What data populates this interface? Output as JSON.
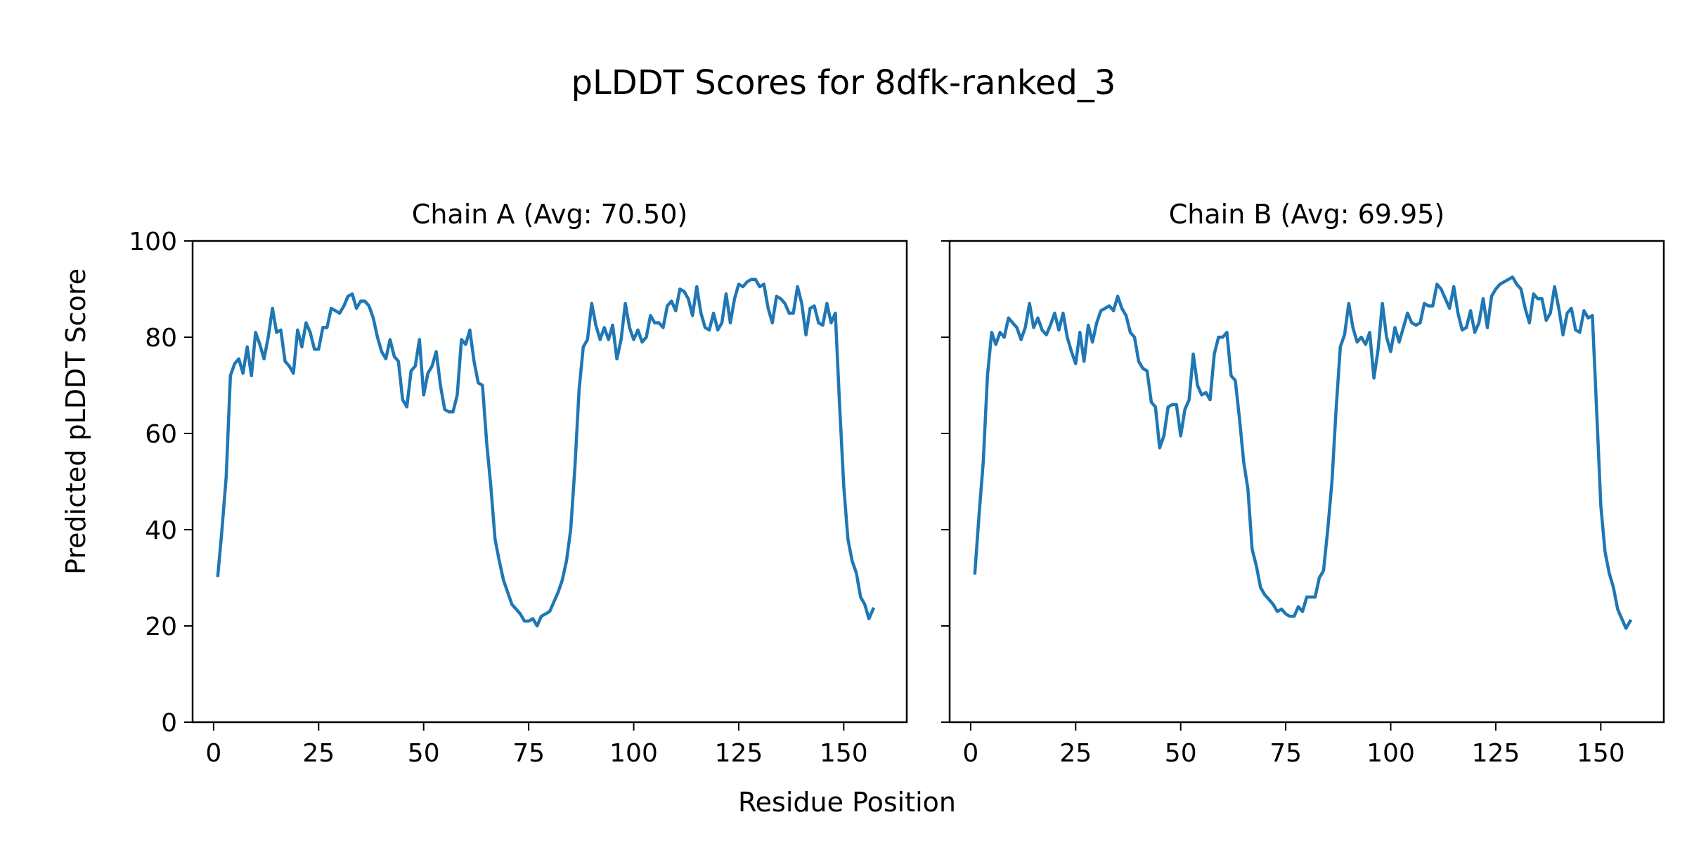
{
  "figure": {
    "title": "pLDDT Scores for 8dfk-ranked_3",
    "xlabel": "Residue Position",
    "ylabel": "Predicted pLDDT Score"
  },
  "colors": {
    "line": "#1f77b4",
    "axes": "#000000"
  },
  "chart_data": [
    {
      "type": "line",
      "title": "Chain A (Avg: 70.50)",
      "xlim": [
        -5,
        165
      ],
      "ylim": [
        0,
        100
      ],
      "xticks": [
        0,
        25,
        50,
        75,
        100,
        125,
        150
      ],
      "yticks": [
        0,
        20,
        40,
        60,
        80,
        100
      ],
      "series": [
        {
          "x": [
            1,
            2,
            3,
            4,
            5,
            6,
            7,
            8,
            9,
            10,
            11,
            12,
            13,
            14,
            15,
            16,
            17,
            18,
            19,
            20,
            21,
            22,
            23,
            24,
            25,
            26,
            27,
            28,
            29,
            30,
            31,
            32,
            33,
            34,
            35,
            36,
            37,
            38,
            39,
            40,
            41,
            42,
            43,
            44,
            45,
            46,
            47,
            48,
            49,
            50,
            51,
            52,
            53,
            54,
            55,
            56,
            57,
            58,
            59,
            60,
            61,
            62,
            63,
            64,
            65,
            66,
            67,
            68,
            69,
            70,
            71,
            72,
            73,
            74,
            75,
            76,
            77,
            78,
            79,
            80,
            81,
            82,
            83,
            84,
            85,
            86,
            87,
            88,
            89,
            90,
            91,
            92,
            93,
            94,
            95,
            96,
            97,
            98,
            99,
            100,
            101,
            102,
            103,
            104,
            105,
            106,
            107,
            108,
            109,
            110,
            111,
            112,
            113,
            114,
            115,
            116,
            117,
            118,
            119,
            120,
            121,
            122,
            123,
            124,
            125,
            126,
            127,
            128,
            129,
            130,
            131,
            132,
            133,
            134,
            135,
            136,
            137,
            138,
            139,
            140,
            141,
            142,
            143,
            144,
            145,
            146,
            147,
            148,
            149,
            150,
            151,
            152,
            153,
            154,
            155,
            156,
            157
          ],
          "y": [
            30.5,
            40,
            51,
            72,
            74.5,
            75.5,
            72.5,
            78,
            72,
            81,
            78.5,
            75.5,
            80,
            86,
            81,
            81.5,
            75,
            74,
            72.5,
            81.5,
            78,
            83,
            81,
            77.5,
            77.5,
            82,
            82,
            86,
            85.5,
            85,
            86.5,
            88.5,
            89,
            86,
            87.5,
            87.5,
            86.5,
            84,
            80,
            77,
            75.5,
            79.5,
            76,
            75,
            67,
            65.5,
            73,
            74,
            79.5,
            68,
            72.5,
            74,
            77,
            70,
            65,
            64.5,
            64.5,
            68,
            79.5,
            78.5,
            81.5,
            75,
            70.5,
            70,
            58,
            49,
            38,
            33.5,
            29.5,
            27,
            24.5,
            23.5,
            22.5,
            21,
            21,
            21.5,
            20,
            22,
            22.5,
            23,
            25,
            27,
            29.5,
            33.5,
            40,
            53,
            69,
            78,
            79.5,
            87,
            82.5,
            79.5,
            82,
            79.5,
            82.5,
            75.5,
            79.5,
            87,
            82,
            79.5,
            81.5,
            79,
            80,
            84.5,
            83,
            83,
            82,
            86.5,
            87.5,
            85.5,
            90,
            89.5,
            88,
            84.5,
            90.5,
            85,
            82,
            81.5,
            85,
            81.5,
            83,
            89,
            83,
            88,
            91,
            90.5,
            91.5,
            92,
            92,
            90.5,
            91,
            86,
            83,
            88.5,
            88,
            87,
            85,
            85,
            90.5,
            87,
            80.5,
            86,
            86.5,
            83,
            82.5,
            87,
            83,
            85,
            66,
            49,
            38,
            33.5,
            31,
            26,
            24.5,
            21.5,
            23.5
          ]
        }
      ]
    },
    {
      "type": "line",
      "title": "Chain B (Avg: 69.95)",
      "xlim": [
        -5,
        165
      ],
      "ylim": [
        0,
        100
      ],
      "xticks": [
        0,
        25,
        50,
        75,
        100,
        125,
        150
      ],
      "yticks": [
        0,
        20,
        40,
        60,
        80,
        100
      ],
      "series": [
        {
          "x": [
            1,
            2,
            3,
            4,
            5,
            6,
            7,
            8,
            9,
            10,
            11,
            12,
            13,
            14,
            15,
            16,
            17,
            18,
            19,
            20,
            21,
            22,
            23,
            24,
            25,
            26,
            27,
            28,
            29,
            30,
            31,
            32,
            33,
            34,
            35,
            36,
            37,
            38,
            39,
            40,
            41,
            42,
            43,
            44,
            45,
            46,
            47,
            48,
            49,
            50,
            51,
            52,
            53,
            54,
            55,
            56,
            57,
            58,
            59,
            60,
            61,
            62,
            63,
            64,
            65,
            66,
            67,
            68,
            69,
            70,
            71,
            72,
            73,
            74,
            75,
            76,
            77,
            78,
            79,
            80,
            81,
            82,
            83,
            84,
            85,
            86,
            87,
            88,
            89,
            90,
            91,
            92,
            93,
            94,
            95,
            96,
            97,
            98,
            99,
            100,
            101,
            102,
            103,
            104,
            105,
            106,
            107,
            108,
            109,
            110,
            111,
            112,
            113,
            114,
            115,
            116,
            117,
            118,
            119,
            120,
            121,
            122,
            123,
            124,
            125,
            126,
            127,
            128,
            129,
            130,
            131,
            132,
            133,
            134,
            135,
            136,
            137,
            138,
            139,
            140,
            141,
            142,
            143,
            144,
            145,
            146,
            147,
            148,
            149,
            150,
            151,
            152,
            153,
            154,
            155,
            156,
            157
          ],
          "y": [
            31,
            43,
            54,
            72,
            81,
            78.5,
            81,
            80,
            84,
            83,
            82,
            79.5,
            82,
            87,
            82,
            84,
            81.5,
            80.5,
            82.5,
            85,
            81.5,
            85,
            80,
            77,
            74.5,
            81,
            75,
            82.5,
            79,
            83,
            85.5,
            86,
            86.5,
            85.5,
            88.5,
            86,
            84.5,
            81,
            80,
            75,
            73.5,
            73,
            66.5,
            65.5,
            57,
            59.5,
            65.5,
            66,
            66,
            59.5,
            65,
            67,
            76.5,
            70,
            68,
            68.5,
            67,
            76.5,
            80,
            80,
            81,
            72,
            71,
            63,
            54,
            48.5,
            36,
            32.5,
            28,
            26.5,
            25.5,
            24.5,
            23,
            23.5,
            22.5,
            22,
            22,
            24,
            23,
            26,
            26,
            26,
            30,
            31.5,
            40,
            50,
            65,
            78,
            80.5,
            87,
            82,
            79,
            80,
            78.5,
            81,
            71.5,
            77.5,
            87,
            80,
            77,
            82,
            79,
            82,
            85,
            83,
            82.5,
            83,
            87,
            86.5,
            86.5,
            91,
            90,
            88,
            86,
            90.5,
            85,
            81.5,
            82,
            85.5,
            81,
            83,
            88,
            82,
            88.5,
            90,
            91,
            91.5,
            92,
            92.5,
            91,
            90,
            86,
            83,
            89,
            88,
            88,
            83.5,
            85,
            90.5,
            86,
            80.5,
            85,
            86,
            81.5,
            81,
            85.5,
            84,
            84.5,
            65,
            45,
            35.5,
            31,
            28,
            23.5,
            21.5,
            19.5,
            21
          ]
        }
      ]
    }
  ]
}
